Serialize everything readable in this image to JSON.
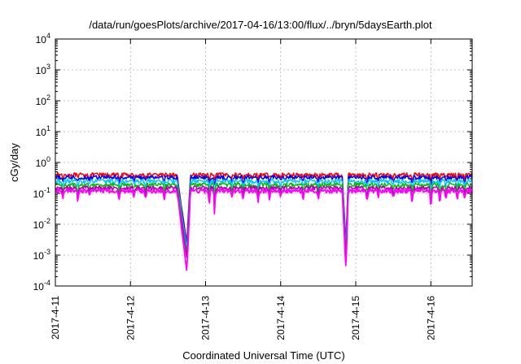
{
  "chart_data": {
    "type": "line",
    "title": "/data/run/goesPlots/archive/2017-04-16/13:00/flux/../bryn/5daysEarth.plot",
    "xlabel": "Coordinated Universal Time (UTC)",
    "ylabel": "cGy/day",
    "yscale": "log",
    "ylim": [
      0.0001,
      10000
    ],
    "xlim": [
      0,
      5.55
    ],
    "x_unit": "days since 2017-4-11 00:00 UTC",
    "grid": true,
    "legend": "none",
    "x_ticks": [
      {
        "value": 0,
        "label": "2017-4-11"
      },
      {
        "value": 1,
        "label": "2017-4-12"
      },
      {
        "value": 2,
        "label": "2017-4-13"
      },
      {
        "value": 3,
        "label": "2017-4-14"
      },
      {
        "value": 4,
        "label": "2017-4-15"
      },
      {
        "value": 5,
        "label": "2017-4-16"
      }
    ],
    "y_ticks": [
      {
        "value": 0.0001,
        "base": "10",
        "exp": "-4"
      },
      {
        "value": 0.001,
        "base": "10",
        "exp": "-3"
      },
      {
        "value": 0.01,
        "base": "10",
        "exp": "-2"
      },
      {
        "value": 0.1,
        "base": "10",
        "exp": "-1"
      },
      {
        "value": 1,
        "base": "10",
        "exp": "0"
      },
      {
        "value": 10,
        "base": "10",
        "exp": "1"
      },
      {
        "value": 100,
        "base": "10",
        "exp": "2"
      },
      {
        "value": 1000,
        "base": "10",
        "exp": "3"
      },
      {
        "value": 10000,
        "base": "10",
        "exp": "4"
      }
    ],
    "series": [
      {
        "color": "#ff0000",
        "baseline": 0.4,
        "min_dip": 0.0025
      },
      {
        "color": "#0000ff",
        "baseline": 0.33,
        "min_dip": 0.002
      },
      {
        "color": "#00c8ff",
        "baseline": 0.25,
        "min_dip": 0.0015
      },
      {
        "color": "#00c000",
        "baseline": 0.19,
        "min_dip": 0.001
      },
      {
        "color": "#b000b0",
        "baseline": 0.15,
        "min_dip": 0.0008
      },
      {
        "color": "#ff00ff",
        "baseline": 0.12,
        "min_dip": 0.0003
      }
    ],
    "events": [
      {
        "x": 0.1,
        "depth": 0.5
      },
      {
        "x": 0.3,
        "depth": 0.4
      },
      {
        "x": 0.45,
        "depth": 0.7
      },
      {
        "x": 0.85,
        "depth": 0.5
      },
      {
        "x": 1.05,
        "depth": 0.6
      },
      {
        "x": 1.2,
        "depth": 0.5
      },
      {
        "x": 1.45,
        "depth": 0.55
      },
      {
        "x": 1.75,
        "depth": 0.7
      },
      {
        "x": 2.05,
        "depth": 0.3
      },
      {
        "x": 2.12,
        "depth": 0.13
      },
      {
        "x": 2.35,
        "depth": 0.55
      },
      {
        "x": 2.5,
        "depth": 0.5
      },
      {
        "x": 2.7,
        "depth": 0.45
      },
      {
        "x": 2.85,
        "depth": 0.5
      },
      {
        "x": 3.0,
        "depth": 0.6
      },
      {
        "x": 3.3,
        "depth": 0.5
      },
      {
        "x": 3.5,
        "depth": 0.45
      },
      {
        "x": 4.15,
        "depth": 0.4
      },
      {
        "x": 4.3,
        "depth": 0.6
      },
      {
        "x": 4.5,
        "depth": 0.5
      },
      {
        "x": 4.75,
        "depth": 0.3
      },
      {
        "x": 5.0,
        "depth": 0.22
      },
      {
        "x": 5.12,
        "depth": 0.4
      },
      {
        "x": 5.2,
        "depth": 0.5
      },
      {
        "x": 5.35,
        "depth": 0.45
      },
      {
        "x": 5.45,
        "depth": 0.5
      }
    ],
    "big_dips": [
      {
        "start": 1.62,
        "min": 1.75,
        "end": 1.8
      },
      {
        "start": 3.82,
        "min": 3.87,
        "end": 3.9
      }
    ]
  }
}
